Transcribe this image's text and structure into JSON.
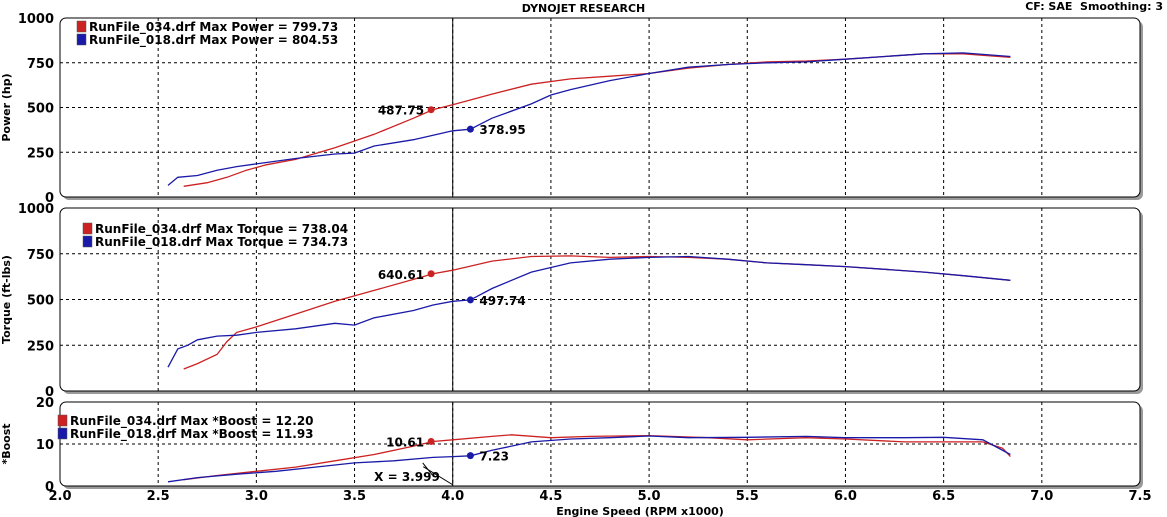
{
  "header": {
    "title": "DYNOJET RESEARCH",
    "cf": "CF: SAE",
    "smoothing": "Smoothing: 3"
  },
  "colors": {
    "run_034": "#cc2222",
    "run_018": "#1a1aa8",
    "panel_bg": "#ffffff",
    "grid": "#000000"
  },
  "chart_data": {
    "type": "line",
    "xlabel": "Engine Speed (RPM x1000)",
    "xlim": [
      2.0,
      7.5
    ],
    "xticks": [
      "2.0",
      "2.5",
      "3.0",
      "3.5",
      "4.0",
      "4.5",
      "5.0",
      "5.5",
      "6.0",
      "6.5",
      "7.0",
      "7.5"
    ],
    "cursor_x": 4.0,
    "cursor_label": "X = 3.999",
    "panels": [
      {
        "id": "power",
        "ylabel": "Power (hp)",
        "ylim": [
          0,
          1000
        ],
        "yticks": [
          "0",
          "250",
          "500",
          "750",
          "1000"
        ],
        "legend": [
          {
            "text": "RunFile_034.drf Max Power = 799.73",
            "color": "#cc2222"
          },
          {
            "text": "RunFile_018.drf Max Power = 804.53",
            "color": "#1a1aa8"
          }
        ],
        "markers": [
          {
            "x": 3.89,
            "y": 487.75,
            "label": "487.75",
            "color": "#cc2222",
            "side": "left"
          },
          {
            "x": 4.09,
            "y": 378.95,
            "label": "378.95",
            "color": "#1a1aa8",
            "side": "right"
          }
        ],
        "series": [
          {
            "name": "RunFile_034.drf",
            "color": "#cc2222",
            "x": [
              2.63,
              2.75,
              2.85,
              2.95,
              3.05,
              3.2,
              3.4,
              3.6,
              3.8,
              3.9,
              4.0,
              4.2,
              4.4,
              4.6,
              4.8,
              5.0,
              5.2,
              5.4,
              5.6,
              5.8,
              6.0,
              6.2,
              6.4,
              6.6,
              6.84
            ],
            "y": [
              60,
              80,
              110,
              150,
              180,
              210,
              275,
              350,
              440,
              488,
              515,
              575,
              630,
              660,
              675,
              690,
              720,
              740,
              755,
              760,
              770,
              785,
              800,
              800,
              780
            ]
          },
          {
            "name": "RunFile_018.drf",
            "color": "#1a1aa8",
            "x": [
              2.55,
              2.6,
              2.7,
              2.8,
              2.9,
              3.0,
              3.2,
              3.4,
              3.5,
              3.6,
              3.8,
              3.9,
              4.0,
              4.09,
              4.2,
              4.4,
              4.5,
              4.6,
              4.8,
              5.0,
              5.2,
              5.4,
              5.6,
              5.8,
              6.0,
              6.2,
              6.4,
              6.6,
              6.84
            ],
            "y": [
              65,
              110,
              120,
              150,
              170,
              185,
              215,
              240,
              245,
              285,
              320,
              345,
              370,
              379,
              440,
              520,
              570,
              600,
              650,
              690,
              725,
              740,
              750,
              755,
              770,
              785,
              800,
              805,
              785
            ]
          }
        ]
      },
      {
        "id": "torque",
        "ylabel": "Torque (ft-lbs)",
        "ylim": [
          0,
          1000
        ],
        "yticks": [
          "0",
          "250",
          "500",
          "750",
          "1000"
        ],
        "legend": [
          {
            "text": "RunFile_034.drf Max Torque = 738.04",
            "color": "#cc2222"
          },
          {
            "text": "RunFile_018.drf Max Torque = 734.73",
            "color": "#1a1aa8"
          }
        ],
        "markers": [
          {
            "x": 3.89,
            "y": 640.61,
            "label": "640.61",
            "color": "#cc2222",
            "side": "left"
          },
          {
            "x": 4.09,
            "y": 497.74,
            "label": "497.74",
            "color": "#1a1aa8",
            "side": "right"
          }
        ],
        "series": [
          {
            "name": "RunFile_034.drf",
            "color": "#cc2222",
            "x": [
              2.63,
              2.7,
              2.8,
              2.85,
              2.9,
              3.0,
              3.2,
              3.4,
              3.6,
              3.8,
              3.9,
              4.0,
              4.2,
              4.4,
              4.6,
              4.8,
              5.0,
              5.2,
              5.4,
              5.6,
              5.8,
              6.0,
              6.2,
              6.4,
              6.6,
              6.84
            ],
            "y": [
              120,
              150,
              200,
              270,
              320,
              350,
              420,
              490,
              550,
              610,
              641,
              660,
              710,
              735,
              738,
              730,
              735,
              730,
              720,
              700,
              690,
              680,
              665,
              650,
              630,
              605
            ]
          },
          {
            "name": "RunFile_018.drf",
            "color": "#1a1aa8",
            "x": [
              2.55,
              2.6,
              2.65,
              2.7,
              2.8,
              2.9,
              3.0,
              3.2,
              3.4,
              3.5,
              3.6,
              3.8,
              3.9,
              4.0,
              4.09,
              4.2,
              4.4,
              4.6,
              4.8,
              5.0,
              5.2,
              5.4,
              5.6,
              5.8,
              6.0,
              6.2,
              6.4,
              6.6,
              6.84
            ],
            "y": [
              130,
              230,
              250,
              280,
              300,
              305,
              320,
              340,
              370,
              360,
              400,
              440,
              470,
              490,
              498,
              560,
              650,
              700,
              720,
              730,
              735,
              720,
              700,
              690,
              680,
              665,
              650,
              630,
              605
            ]
          }
        ]
      },
      {
        "id": "boost",
        "ylabel": "*Boost",
        "ylim": [
          0,
          20
        ],
        "yticks": [
          "0",
          "10",
          "20"
        ],
        "legend": [
          {
            "text": "RunFile_034.drf Max *Boost = 12.20",
            "color": "#cc2222"
          },
          {
            "text": "RunFile_018.drf Max *Boost = 11.93",
            "color": "#1a1aa8"
          }
        ],
        "markers": [
          {
            "x": 3.89,
            "y": 10.61,
            "label": "10.61",
            "color": "#cc2222",
            "side": "left"
          },
          {
            "x": 4.09,
            "y": 7.23,
            "label": "7.23",
            "color": "#1a1aa8",
            "side": "right"
          }
        ],
        "series": [
          {
            "name": "RunFile_034.drf",
            "color": "#cc2222",
            "x": [
              2.63,
              2.8,
              3.0,
              3.2,
              3.4,
              3.6,
              3.8,
              3.9,
              4.0,
              4.2,
              4.3,
              4.5,
              4.7,
              5.0,
              5.3,
              5.5,
              5.8,
              6.0,
              6.3,
              6.5,
              6.7,
              6.8,
              6.84
            ],
            "y": [
              1.5,
              2.5,
              3.5,
              4.5,
              6,
              7.5,
              9.5,
              10.6,
              11,
              11.8,
              12.2,
              11.5,
              11.8,
              12,
              11.5,
              11,
              11.5,
              11.2,
              10.5,
              10.5,
              10.5,
              9,
              7
            ]
          },
          {
            "name": "RunFile_018.drf",
            "color": "#1a1aa8",
            "x": [
              2.55,
              2.7,
              2.9,
              3.1,
              3.3,
              3.5,
              3.7,
              3.9,
              4.0,
              4.09,
              4.2,
              4.4,
              4.6,
              4.8,
              5.0,
              5.2,
              5.5,
              5.8,
              6.0,
              6.3,
              6.5,
              6.7,
              6.84
            ],
            "y": [
              1,
              2,
              2.8,
              3.5,
              4.5,
              5.5,
              6,
              6.8,
              7,
              7.2,
              8.5,
              10.5,
              11.2,
              11.5,
              11.9,
              11.5,
              11.6,
              11.8,
              11.5,
              11.5,
              11.6,
              11,
              7.5
            ]
          }
        ]
      }
    ]
  }
}
